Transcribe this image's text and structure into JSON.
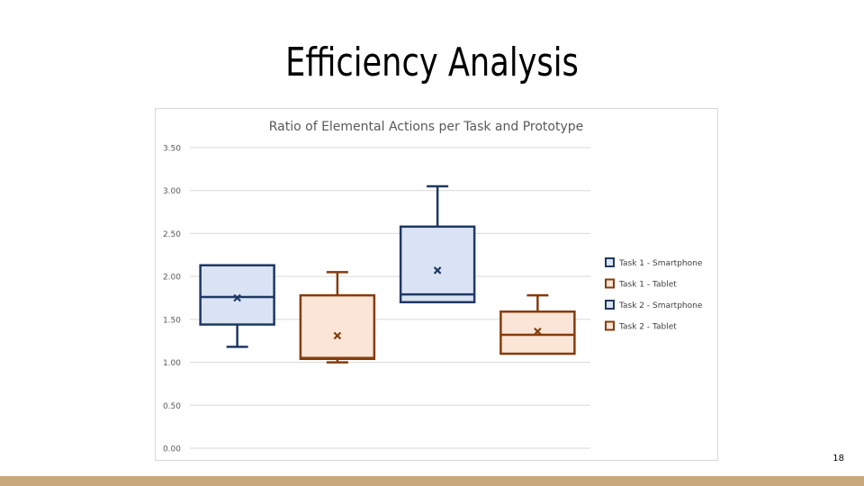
{
  "slide": {
    "title": "Efficiency Analysis",
    "page_number": "18",
    "footer_color": "#c8a97e"
  },
  "chart_data": {
    "type": "boxplot",
    "title": "Ratio of Elemental Actions per Task and Prototype",
    "xlabel": "",
    "ylabel": "",
    "ylim": [
      0,
      3.5
    ],
    "yticks": [
      "0.00",
      "0.50",
      "1.00",
      "1.50",
      "2.00",
      "2.50",
      "3.00",
      "3.50"
    ],
    "grid": true,
    "legend_position": "right",
    "series": [
      {
        "name": "Task 1 - Smartphone",
        "color": "#1f3864",
        "fill": "#dae3f3",
        "min": 1.18,
        "q1": 1.44,
        "median": 1.76,
        "q3": 2.13,
        "max": 2.13,
        "mean": 1.75
      },
      {
        "name": "Task 1 - Tablet",
        "color": "#843c0c",
        "fill": "#fbe5d6",
        "min": 1.0,
        "q1": 1.04,
        "median": 1.05,
        "q3": 1.78,
        "max": 2.05,
        "mean": 1.31
      },
      {
        "name": "Task 2 - Smartphone",
        "color": "#1f3864",
        "fill": "#dae3f3",
        "min": 1.7,
        "q1": 1.7,
        "median": 1.79,
        "q3": 2.58,
        "max": 3.05,
        "mean": 2.07
      },
      {
        "name": "Task 2 - Tablet",
        "color": "#843c0c",
        "fill": "#fbe5d6",
        "min": 1.1,
        "q1": 1.1,
        "median": 1.32,
        "q3": 1.59,
        "max": 1.78,
        "mean": 1.36
      }
    ]
  }
}
